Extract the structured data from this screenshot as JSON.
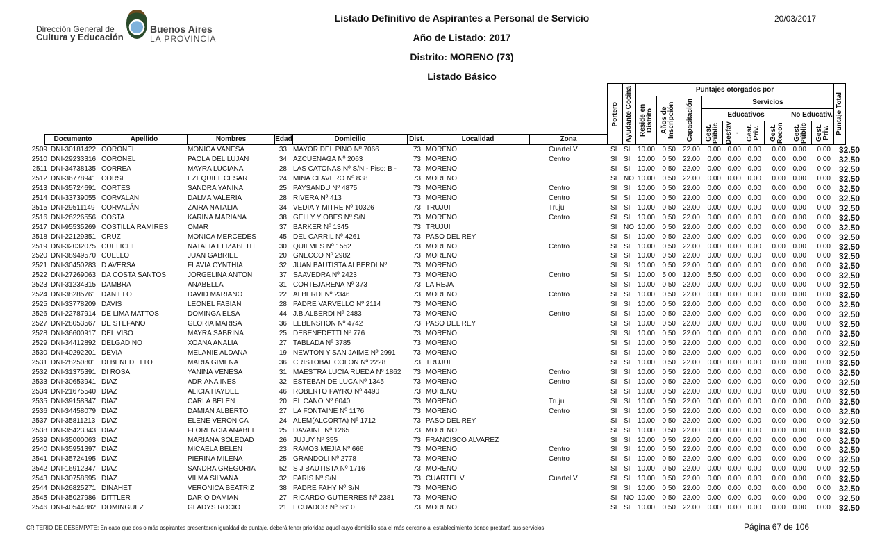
{
  "header": {
    "title": "Listado Definitivo de Aspirantes a Personal de Servicio",
    "year": "Año de Listado: 2017",
    "district": "Distrito: MORENO (73)",
    "list_type": "Listado Básico",
    "date": "20/03/2017",
    "logo": {
      "line1": "Dirección General de",
      "line2": "Cultura y Educación",
      "brand1": "Buenos Aires",
      "brand2": "LA PROVINCIA"
    }
  },
  "columns": {
    "documento": "Documento",
    "apellido": "Apellido",
    "nombres": "Nombres",
    "edad": "Edad",
    "domicilio": "Domicilio",
    "dist": "Dist.",
    "localidad": "Localidad",
    "zona": "Zona",
    "portero": "Portero",
    "ayudante": "Ayudante Cocina",
    "puntajes": "Puntajes otorgados por",
    "reside": "Reside en Distrito",
    "anios": "Años de Inscripción",
    "capacitacion": "Capacitación",
    "servicios": "Servicios",
    "educativos": "Educativos",
    "no_educativos": "No Educativ.",
    "gest_public": "Gest. Públic",
    "desfav": "Desfav .",
    "gest_priv": "Gest. Priv.",
    "gest_recon": "Gest. Recon",
    "ne_gest_public": "Gest. Públic",
    "ne_gest_priv": "Gest. Priv.",
    "total": "Puntaje Total"
  },
  "rows": [
    [
      "2509",
      "DNI-30181422",
      "CORONEL",
      "MONICA VANESA",
      "33",
      "MAYOR DEL PINO Nº 7066",
      "73",
      "MORENO",
      "Cuartel V",
      "SI",
      "SI",
      "10.00",
      "0.50",
      "22.00",
      "0.00",
      "0.00",
      "0.00",
      "0.00",
      "0.00",
      "0.00",
      "32.50"
    ],
    [
      "2510",
      "DNI-29233316",
      "CORONEL",
      "PAOLA DEL LUJAN",
      "34",
      "AZCUENAGA Nº 2063",
      "73",
      "MORENO",
      "Centro",
      "SI",
      "SI",
      "10.00",
      "0.50",
      "22.00",
      "0.00",
      "0.00",
      "0.00",
      "0.00",
      "0.00",
      "0.00",
      "32.50"
    ],
    [
      "2511",
      "DNI-34738135",
      "CORREA",
      "MAYRA LUCIANA",
      "28",
      "LAS CATONAS Nº S/N - Piso: B -",
      "73",
      "MORENO",
      "",
      "SI",
      "SI",
      "10.00",
      "0.50",
      "22.00",
      "0.00",
      "0.00",
      "0.00",
      "0.00",
      "0.00",
      "0.00",
      "32.50"
    ],
    [
      "2512",
      "DNI-36778941",
      "CORSI",
      "EZEQUIEL CESAR",
      "24",
      "MINA CLAVERO Nº 838",
      "73",
      "MORENO",
      "",
      "SI",
      "NO",
      "10.00",
      "0.50",
      "22.00",
      "0.00",
      "0.00",
      "0.00",
      "0.00",
      "0.00",
      "0.00",
      "32.50"
    ],
    [
      "2513",
      "DNI-35724691",
      "CORTES",
      "SANDRA YANINA",
      "25",
      "PAYSANDU Nº 4875",
      "73",
      "MORENO",
      "Centro",
      "SI",
      "SI",
      "10.00",
      "0.50",
      "22.00",
      "0.00",
      "0.00",
      "0.00",
      "0.00",
      "0.00",
      "0.00",
      "32.50"
    ],
    [
      "2514",
      "DNI-33739055",
      "CORVALAN",
      "DALMA VALERIA",
      "28",
      "RIVERA Nº 413",
      "73",
      "MORENO",
      "Centro",
      "SI",
      "SI",
      "10.00",
      "0.50",
      "22.00",
      "0.00",
      "0.00",
      "0.00",
      "0.00",
      "0.00",
      "0.00",
      "32.50"
    ],
    [
      "2515",
      "DNI-29511149",
      "CORVALÁN",
      "ZAIRA NATALIA",
      "34",
      "VEDIA Y MITRE Nº 10326",
      "73",
      "TRUJUI",
      "Trujui",
      "SI",
      "SI",
      "10.00",
      "0.50",
      "22.00",
      "0.00",
      "0.00",
      "0.00",
      "0.00",
      "0.00",
      "0.00",
      "32.50"
    ],
    [
      "2516",
      "DNI-26226556",
      "COSTA",
      "KARINA MARIANA",
      "38",
      "GELLY Y OBES Nº S/N",
      "73",
      "MORENO",
      "Centro",
      "SI",
      "SI",
      "10.00",
      "0.50",
      "22.00",
      "0.00",
      "0.00",
      "0.00",
      "0.00",
      "0.00",
      "0.00",
      "32.50"
    ],
    [
      "2517",
      "DNI-95535269",
      "COSTILLA RAMIRES",
      "OMAR",
      "37",
      "BARKER Nº 1345",
      "73",
      "TRUJUI",
      "",
      "SI",
      "NO",
      "10.00",
      "0.50",
      "22.00",
      "0.00",
      "0.00",
      "0.00",
      "0.00",
      "0.00",
      "0.00",
      "32.50"
    ],
    [
      "2518",
      "DNI-22129351",
      "CRUZ",
      "MONICA MERCEDES",
      "45",
      "DEL CARRIL Nº 4261",
      "73",
      "PASO DEL REY",
      "",
      "SI",
      "SI",
      "10.00",
      "0.50",
      "22.00",
      "0.00",
      "0.00",
      "0.00",
      "0.00",
      "0.00",
      "0.00",
      "32.50"
    ],
    [
      "2519",
      "DNI-32032075",
      "CUELICHI",
      "NATALIA ELIZABETH",
      "30",
      "QUILMES Nº 1552",
      "73",
      "MORENO",
      "Centro",
      "SI",
      "SI",
      "10.00",
      "0.50",
      "22.00",
      "0.00",
      "0.00",
      "0.00",
      "0.00",
      "0.00",
      "0.00",
      "32.50"
    ],
    [
      "2520",
      "DNI-38949570",
      "CUELLO",
      "JUAN GABRIEL",
      "20",
      "GNECCO Nº 2982",
      "73",
      "MORENO",
      "",
      "SI",
      "SI",
      "10.00",
      "0.50",
      "22.00",
      "0.00",
      "0.00",
      "0.00",
      "0.00",
      "0.00",
      "0.00",
      "32.50"
    ],
    [
      "2521",
      "DNI-30450283",
      "D AVERSA",
      "FLAVIA  CYNTHIA",
      "32",
      "JUAN BAUTISTA ALBERDI Nº",
      "73",
      "MORENO",
      "",
      "SI",
      "SI",
      "10.00",
      "0.50",
      "22.00",
      "0.00",
      "0.00",
      "0.00",
      "0.00",
      "0.00",
      "0.00",
      "32.50"
    ],
    [
      "2522",
      "DNI-27269063",
      "DA COSTA SANTOS",
      "JORGELINA ANTON",
      "37",
      "SAAVEDRA Nº 2423",
      "73",
      "MORENO",
      "Centro",
      "SI",
      "SI",
      "10.00",
      "5.00",
      "12.00",
      "5.50",
      "0.00",
      "0.00",
      "0.00",
      "0.00",
      "0.00",
      "32.50"
    ],
    [
      "2523",
      "DNI-31234315",
      "DAMBRA",
      "ANABELLA",
      "31",
      "CORTEJARENA Nº 373",
      "73",
      "LA REJA",
      "",
      "SI",
      "SI",
      "10.00",
      "0.50",
      "22.00",
      "0.00",
      "0.00",
      "0.00",
      "0.00",
      "0.00",
      "0.00",
      "32.50"
    ],
    [
      "2524",
      "DNI-38285761",
      "DANIELO",
      "DAVID MARIANO",
      "22",
      "ALBERDI Nº 2346",
      "73",
      "MORENO",
      "Centro",
      "SI",
      "SI",
      "10.00",
      "0.50",
      "22.00",
      "0.00",
      "0.00",
      "0.00",
      "0.00",
      "0.00",
      "0.00",
      "32.50"
    ],
    [
      "2525",
      "DNI-33778209",
      "DAVIS",
      "LEONEL FABIAN",
      "28",
      "PADRE VARVELLO Nº 2114",
      "73",
      "MORENO",
      "",
      "SI",
      "SI",
      "10.00",
      "0.50",
      "22.00",
      "0.00",
      "0.00",
      "0.00",
      "0.00",
      "0.00",
      "0.00",
      "32.50"
    ],
    [
      "2526",
      "DNI-22787914",
      "DE LIMA MATTOS",
      "DOMINGA ELSA",
      "44",
      "J.B.ALBERDI Nº 2483",
      "73",
      "MORENO",
      "Centro",
      "SI",
      "SI",
      "10.00",
      "0.50",
      "22.00",
      "0.00",
      "0.00",
      "0.00",
      "0.00",
      "0.00",
      "0.00",
      "32.50"
    ],
    [
      "2527",
      "DNI-28053567",
      "DE STEFANO",
      "GLORIA MARISA",
      "36",
      "LEBENSHON Nº 4742",
      "73",
      "PASO DEL REY",
      "",
      "SI",
      "SI",
      "10.00",
      "0.50",
      "22.00",
      "0.00",
      "0.00",
      "0.00",
      "0.00",
      "0.00",
      "0.00",
      "32.50"
    ],
    [
      "2528",
      "DNI-36600917",
      "DEL VISO",
      "MAYRA SABRINA",
      "25",
      "DEBENEDETTI Nº 776",
      "73",
      "MORENO",
      "",
      "SI",
      "SI",
      "10.00",
      "0.50",
      "22.00",
      "0.00",
      "0.00",
      "0.00",
      "0.00",
      "0.00",
      "0.00",
      "32.50"
    ],
    [
      "2529",
      "DNI-34412892",
      "DELGADINO",
      "XOANA ANALIA",
      "27",
      "TABLADA Nº 3785",
      "73",
      "MORENO",
      "",
      "SI",
      "SI",
      "10.00",
      "0.50",
      "22.00",
      "0.00",
      "0.00",
      "0.00",
      "0.00",
      "0.00",
      "0.00",
      "32.50"
    ],
    [
      "2530",
      "DNI-40292201",
      "DEVIA",
      "MELANIE ALDANA",
      "19",
      "NEWTON Y SAN JAIME Nº 2991",
      "73",
      "MORENO",
      "",
      "SI",
      "SI",
      "10.00",
      "0.50",
      "22.00",
      "0.00",
      "0.00",
      "0.00",
      "0.00",
      "0.00",
      "0.00",
      "32.50"
    ],
    [
      "2531",
      "DNI-28250801",
      "DI BENEDETTO",
      "MARIA GIMENA",
      "36",
      "CRISTOBAL COLON Nº 2228",
      "73",
      "TRUJUI",
      "",
      "SI",
      "SI",
      "10.00",
      "0.50",
      "22.00",
      "0.00",
      "0.00",
      "0.00",
      "0.00",
      "0.00",
      "0.00",
      "32.50"
    ],
    [
      "2532",
      "DNI-31375391",
      "DI ROSA",
      "YANINA VENESA",
      "31",
      "MAESTRA LUCIA RUEDA Nº 1862",
      "73",
      "MORENO",
      "Centro",
      "SI",
      "SI",
      "10.00",
      "0.50",
      "22.00",
      "0.00",
      "0.00",
      "0.00",
      "0.00",
      "0.00",
      "0.00",
      "32.50"
    ],
    [
      "2533",
      "DNI-30653941",
      "DIAZ",
      "ADRIANA INES",
      "32",
      "ESTEBAN DE LUCA Nº 1345",
      "73",
      "MORENO",
      "Centro",
      "SI",
      "SI",
      "10.00",
      "0.50",
      "22.00",
      "0.00",
      "0.00",
      "0.00",
      "0.00",
      "0.00",
      "0.00",
      "32.50"
    ],
    [
      "2534",
      "DNI-21675540",
      "DIAZ",
      "ALICIA HAYDEE",
      "46",
      "ROBERTO PAYRO Nº 4490",
      "73",
      "MORENO",
      "",
      "SI",
      "SI",
      "10.00",
      "0.50",
      "22.00",
      "0.00",
      "0.00",
      "0.00",
      "0.00",
      "0.00",
      "0.00",
      "32.50"
    ],
    [
      "2535",
      "DNI-39158347",
      "DIAZ",
      "CARLA BELEN",
      "20",
      "EL CANO Nº 6040",
      "73",
      "MORENO",
      "Trujui",
      "SI",
      "SI",
      "10.00",
      "0.50",
      "22.00",
      "0.00",
      "0.00",
      "0.00",
      "0.00",
      "0.00",
      "0.00",
      "32.50"
    ],
    [
      "2536",
      "DNI-34458079",
      "DIAZ",
      "DAMIAN ALBERTO",
      "27",
      "LA FONTAINE Nº 1176",
      "73",
      "MORENO",
      "Centro",
      "SI",
      "SI",
      "10.00",
      "0.50",
      "22.00",
      "0.00",
      "0.00",
      "0.00",
      "0.00",
      "0.00",
      "0.00",
      "32.50"
    ],
    [
      "2537",
      "DNI-35811213",
      "DIAZ",
      "ELENE VERONICA",
      "24",
      "ALEM(ALCORTA) Nº 1712",
      "73",
      "PASO DEL REY",
      "",
      "SI",
      "SI",
      "10.00",
      "0.50",
      "22.00",
      "0.00",
      "0.00",
      "0.00",
      "0.00",
      "0.00",
      "0.00",
      "32.50"
    ],
    [
      "2538",
      "DNI-35423343",
      "DIAZ",
      "FLORENCIA ANABEL",
      "25",
      "DAVAINE Nº 1265",
      "73",
      "MORENO",
      "",
      "SI",
      "SI",
      "10.00",
      "0.50",
      "22.00",
      "0.00",
      "0.00",
      "0.00",
      "0.00",
      "0.00",
      "0.00",
      "32.50"
    ],
    [
      "2539",
      "DNI-35000063",
      "DIAZ",
      "MARIANA SOLEDAD",
      "26",
      "JUJUY Nº 355",
      "73",
      "FRANCISCO ALVAREZ",
      "",
      "SI",
      "SI",
      "10.00",
      "0.50",
      "22.00",
      "0.00",
      "0.00",
      "0.00",
      "0.00",
      "0.00",
      "0.00",
      "32.50"
    ],
    [
      "2540",
      "DNI-35951397",
      "DIAZ",
      "MICAELA BELEN",
      "23",
      "RAMOS MEJIA Nº 666",
      "73",
      "MORENO",
      "Centro",
      "SI",
      "SI",
      "10.00",
      "0.50",
      "22.00",
      "0.00",
      "0.00",
      "0.00",
      "0.00",
      "0.00",
      "0.00",
      "32.50"
    ],
    [
      "2541",
      "DNI-35724195",
      "DIAZ",
      "PIERINA MILENA",
      "25",
      "GRANDOLI Nº 2778",
      "73",
      "MORENO",
      "Centro",
      "SI",
      "SI",
      "10.00",
      "0.50",
      "22.00",
      "0.00",
      "0.00",
      "0.00",
      "0.00",
      "0.00",
      "0.00",
      "32.50"
    ],
    [
      "2542",
      "DNI-16912347",
      "DIAZ",
      "SANDRA GREGORIA",
      "52",
      "S J BAUTISTA Nº 1716",
      "73",
      "MORENO",
      "",
      "SI",
      "SI",
      "10.00",
      "0.50",
      "22.00",
      "0.00",
      "0.00",
      "0.00",
      "0.00",
      "0.00",
      "0.00",
      "32.50"
    ],
    [
      "2543",
      "DNI-30758695",
      "DIAZ",
      "VILMA SILVANA",
      "32",
      "PARIS Nº S/N",
      "73",
      "CUARTEL V",
      "Cuartel V",
      "SI",
      "SI",
      "10.00",
      "0.50",
      "22.00",
      "0.00",
      "0.00",
      "0.00",
      "0.00",
      "0.00",
      "0.00",
      "32.50"
    ],
    [
      "2544",
      "DNI-26825271",
      "DINAHET",
      "VERONICA BEATRIZ",
      "38",
      "PADRE FAHY Nº S/N",
      "73",
      "MORENO",
      "",
      "SI",
      "SI",
      "10.00",
      "0.50",
      "22.00",
      "0.00",
      "0.00",
      "0.00",
      "0.00",
      "0.00",
      "0.00",
      "32.50"
    ],
    [
      "2545",
      "DNI-35027986",
      "DITTLER",
      "DARIO DAMIAN",
      "27",
      "RICARDO GUTIERRES Nº 2381",
      "73",
      "MORENO",
      "",
      "SI",
      "NO",
      "10.00",
      "0.50",
      "22.00",
      "0.00",
      "0.00",
      "0.00",
      "0.00",
      "0.00",
      "0.00",
      "32.50"
    ],
    [
      "2546",
      "DNI-40544882",
      "DOMINGUEZ",
      "GLADYS ROCIO",
      "21",
      "ECUADOR Nº 6610",
      "73",
      "MORENO",
      "",
      "SI",
      "SI",
      "10.00",
      "0.50",
      "22.00",
      "0.00",
      "0.00",
      "0.00",
      "0.00",
      "0.00",
      "0.00",
      "32.50"
    ]
  ],
  "footer": {
    "criterio": "CRITERIO DE DESEMPATE: En caso que dos o más aspirantes presentaren igualdad de puntaje, deberá tener prioridad aquel cuyo domicilio sea el más cercano al establecimiento donde prestará sus servicios.",
    "page": "Página 67 de 106"
  }
}
